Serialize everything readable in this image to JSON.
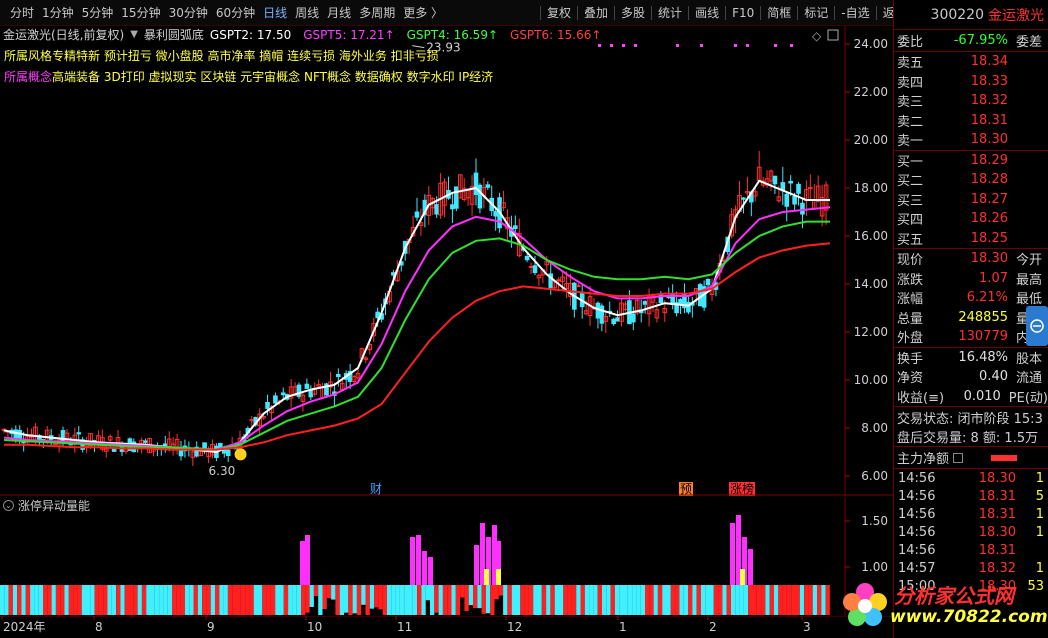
{
  "toolbar": {
    "left_items": [
      "分时",
      "1分钟",
      "5分钟",
      "15分钟",
      "30分钟",
      "60分钟",
      "日线",
      "周线",
      "月线",
      "多周期",
      "更多 〉"
    ],
    "active_item": "日线",
    "right_items": [
      "复权",
      "叠加",
      "多股",
      "统计",
      "画线",
      "F10",
      "简框",
      "标记",
      "-自选",
      "返回"
    ]
  },
  "chart_header": {
    "stock": "金运激光(日线,前复权)",
    "indicator": "暴利圆弧底",
    "gspt2_label": "GSPT2: 17.50",
    "gspt5_label": "GSPT5: 17.21↑",
    "gspt4_label": "GSPT4: 16.59↑",
    "gspt6_label": "GSPT6: 15.66↑",
    "style_label": "所属风格",
    "style_tags": "专精特新  预计扭亏  微小盘股  高市净率  摘帽  连续亏损  海外业务  扣非亏损",
    "concept_label": "所属概念",
    "concept_tags": "高端装备  3D打印  虚拟现实  区块链  元宇宙概念  NFT概念  数据确权  数字水印  IP经济"
  },
  "chart_annotations": {
    "high_label": "23.93",
    "low_label": "6.30",
    "event_cai": "财",
    "event_yu": "预",
    "event_zhangbang": "涨榜"
  },
  "sub_indicator": {
    "title": "涨停异动量能",
    "yticks": [
      "1.50",
      "1.00"
    ]
  },
  "colors": {
    "up": "#ff3030",
    "down": "#40e8ff",
    "ma_white": "#ffffff",
    "ma_magenta": "#ff30ff",
    "ma_green": "#30e030",
    "ma_red": "#ff2020",
    "panel_border": "#6a0000"
  },
  "chart_data": {
    "type": "line",
    "title": "",
    "ylim": [
      5.5,
      24.5
    ],
    "yticks": [
      "24.00",
      "22.00",
      "20.00",
      "18.00",
      "16.00",
      "14.00",
      "12.00",
      "10.00",
      "8.00",
      "6.00"
    ],
    "x_labels": [
      "2024年",
      "8",
      "9",
      "10",
      "11",
      "12",
      "1",
      "2",
      "3"
    ],
    "series": [
      {
        "name": "GSPT2",
        "color": "#ffffff",
        "values": [
          7.9,
          7.7,
          7.6,
          7.5,
          7.4,
          7.35,
          7.3,
          7.2,
          7.1,
          7.0,
          7.4,
          8.6,
          9.3,
          9.6,
          9.8,
          10.5,
          12.8,
          15.5,
          17.3,
          17.8,
          18.0,
          17.0,
          15.5,
          14.4,
          13.6,
          13.0,
          12.7,
          12.9,
          13.2,
          13.1,
          13.8,
          16.8,
          18.3,
          17.9,
          17.5,
          17.5
        ]
      },
      {
        "name": "GSPT5",
        "color": "#ff30ff",
        "values": [
          7.6,
          7.5,
          7.45,
          7.4,
          7.35,
          7.3,
          7.25,
          7.2,
          7.15,
          7.1,
          7.4,
          8.1,
          8.7,
          9.1,
          9.4,
          9.9,
          11.5,
          13.7,
          15.4,
          16.4,
          16.8,
          16.6,
          15.9,
          15.0,
          14.3,
          13.7,
          13.4,
          13.4,
          13.5,
          13.5,
          13.9,
          15.7,
          16.7,
          17.0,
          17.1,
          17.2
        ]
      },
      {
        "name": "GSPT4",
        "color": "#30e030",
        "values": [
          7.5,
          7.45,
          7.4,
          7.35,
          7.3,
          7.25,
          7.2,
          7.2,
          7.15,
          7.1,
          7.3,
          7.8,
          8.3,
          8.6,
          8.9,
          9.3,
          10.5,
          12.5,
          14.2,
          15.3,
          15.8,
          15.9,
          15.6,
          15.0,
          14.6,
          14.3,
          14.2,
          14.2,
          14.3,
          14.2,
          14.4,
          15.3,
          16.0,
          16.4,
          16.6,
          16.6
        ]
      },
      {
        "name": "GSPT6",
        "color": "#ff2020",
        "values": [
          7.3,
          7.3,
          7.25,
          7.2,
          7.2,
          7.15,
          7.15,
          7.1,
          7.1,
          7.1,
          7.2,
          7.4,
          7.7,
          7.9,
          8.1,
          8.4,
          9.0,
          10.3,
          11.6,
          12.6,
          13.3,
          13.7,
          13.9,
          13.8,
          13.7,
          13.6,
          13.5,
          13.5,
          13.6,
          13.6,
          13.8,
          14.5,
          15.1,
          15.4,
          15.6,
          15.7
        ]
      }
    ],
    "grid": true
  },
  "quote": {
    "code": "300220",
    "name": "金运激光",
    "weibi_label": "委比",
    "weibi_value": "-67.95%",
    "weicha_label": "委差",
    "asks": [
      {
        "label": "卖五",
        "price": "18.34"
      },
      {
        "label": "卖四",
        "price": "18.33"
      },
      {
        "label": "卖三",
        "price": "18.32"
      },
      {
        "label": "卖二",
        "price": "18.31"
      },
      {
        "label": "卖一",
        "price": "18.30"
      }
    ],
    "bids": [
      {
        "label": "买一",
        "price": "18.29"
      },
      {
        "label": "买二",
        "price": "18.28"
      },
      {
        "label": "买三",
        "price": "18.27"
      },
      {
        "label": "买四",
        "price": "18.26"
      },
      {
        "label": "买五",
        "price": "18.25"
      }
    ],
    "stats": [
      {
        "label": "现价",
        "value": "18.30",
        "cls": "red",
        "extra": "今开"
      },
      {
        "label": "涨跌",
        "value": "1.07",
        "cls": "red",
        "extra": "最高"
      },
      {
        "label": "涨幅",
        "value": "6.21%",
        "cls": "red",
        "extra": "最低"
      },
      {
        "label": "总量",
        "value": "248855",
        "cls": "yel",
        "extra": "量比"
      },
      {
        "label": "外盘",
        "value": "130779",
        "cls": "red",
        "extra": "内盘"
      }
    ],
    "stats2": [
      {
        "label": "换手",
        "value": "16.48%",
        "cls": "wht",
        "extra": "股本"
      },
      {
        "label": "净资",
        "value": "0.40",
        "cls": "wht",
        "extra": "流通"
      },
      {
        "label": "收益(≡)",
        "value": "0.010",
        "cls": "wht",
        "extra": "PE(动)"
      }
    ],
    "trade_status": "交易状态: 闭市阶段 15:3",
    "after_hours": "盘后交易量: 8  额: 1.5万",
    "main_flow_label": "主力净额",
    "ticks": [
      {
        "time": "14:56",
        "price": "18.30",
        "qty": "1"
      },
      {
        "time": "14:56",
        "price": "18.31",
        "qty": "5"
      },
      {
        "time": "14:56",
        "price": "18.31",
        "qty": "1"
      },
      {
        "time": "14:56",
        "price": "18.30",
        "qty": "1"
      },
      {
        "time": "14:56",
        "price": "18.31",
        "qty": ""
      },
      {
        "time": "14:57",
        "price": "18.32",
        "qty": "1"
      },
      {
        "time": "15:00",
        "price": "18.30",
        "qty": "53"
      }
    ]
  },
  "watermark": {
    "line1": "分析家公式网",
    "line2": "www.70822.com"
  }
}
